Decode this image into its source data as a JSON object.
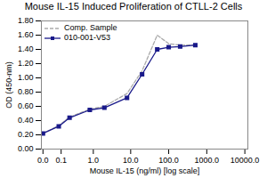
{
  "chart_data": {
    "type": "line",
    "title": "Mouse IL-15 Induced Proliferation of CTLL-2 Cells",
    "xlabel": "Mouse IL-15 (ng/ml) [log scale]",
    "ylabel": "OD (450-nm)",
    "x": [
      0.0,
      0.08,
      0.2,
      0.8,
      2.0,
      8.0,
      20.0,
      50.0,
      100.0,
      200.0,
      500.0
    ],
    "series": [
      {
        "name": "Comp. Sample",
        "color": "#aaaaaa",
        "line_style": "dashed",
        "values": [
          0.22,
          0.33,
          0.45,
          0.56,
          0.6,
          0.78,
          1.1,
          1.6,
          1.48,
          1.46,
          1.46
        ]
      },
      {
        "name": "010-001-V53",
        "color": "#1a1a8a",
        "line_style": "solid",
        "marker": "square",
        "values": [
          0.22,
          0.32,
          0.44,
          0.55,
          0.58,
          0.72,
          1.05,
          1.4,
          1.43,
          1.44,
          1.46
        ]
      }
    ],
    "xlim": [
      -0.005,
      12000
    ],
    "xticks": [
      {
        "value": 0,
        "label": "0.0"
      },
      0.1,
      {
        "value": 1,
        "label": "1.0"
      },
      {
        "value": 10,
        "label": "10.0"
      },
      {
        "value": 100,
        "label": "100.0"
      },
      {
        "value": 1000,
        "label": "1000.0"
      },
      {
        "value": 10000,
        "label": "10000.0"
      }
    ],
    "ylim": [
      0.0,
      1.8
    ],
    "yticks": [
      {
        "value": 0,
        "label": "0.00"
      },
      {
        "value": 0.2,
        "label": "0.20"
      },
      {
        "value": 0.4,
        "label": "0.40"
      },
      {
        "value": 0.6,
        "label": "0.60"
      },
      {
        "value": 0.8,
        "label": "0.80"
      },
      {
        "value": 1.0,
        "label": "1.00"
      },
      {
        "value": 1.2,
        "label": "1.20"
      },
      {
        "value": 1.4,
        "label": "1.40"
      },
      {
        "value": 1.6,
        "label": "1.60"
      },
      {
        "value": 1.8,
        "label": "1.80"
      }
    ],
    "log": "x",
    "grid": false,
    "legend": "upper-left"
  }
}
